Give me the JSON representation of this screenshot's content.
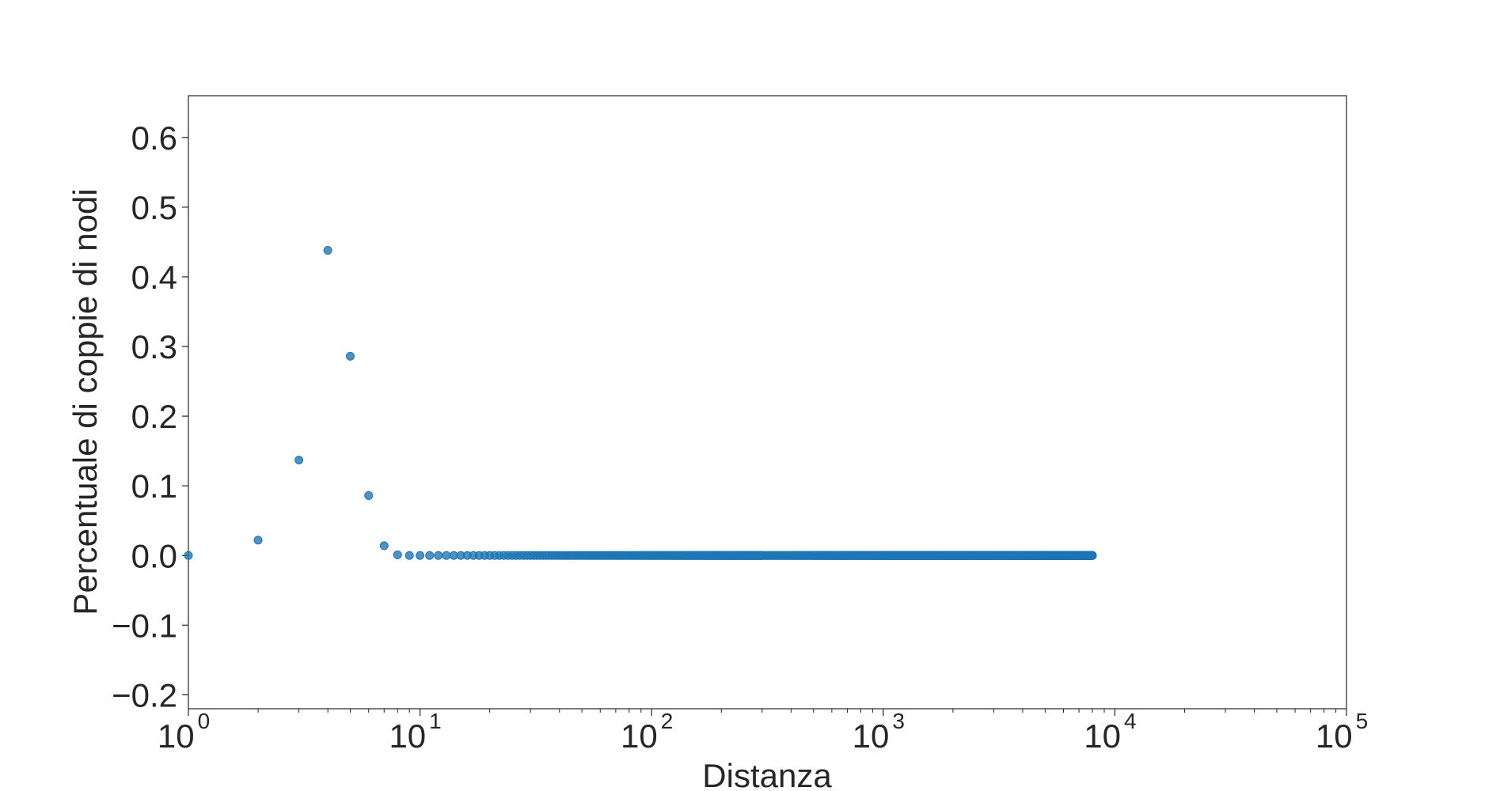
{
  "chart_data": {
    "type": "scatter",
    "title": "",
    "xlabel": "Distanza",
    "ylabel": "Percentuale di coppie di nodi",
    "x_scale": "log",
    "xlim": [
      1,
      100000
    ],
    "ylim": [
      -0.22,
      0.66
    ],
    "grid": false,
    "legend": "none",
    "x_ticks": [
      {
        "base": "10",
        "exp": "0",
        "value": 1
      },
      {
        "base": "10",
        "exp": "1",
        "value": 10
      },
      {
        "base": "10",
        "exp": "2",
        "value": 100
      },
      {
        "base": "10",
        "exp": "3",
        "value": 1000
      },
      {
        "base": "10",
        "exp": "4",
        "value": 10000
      },
      {
        "base": "10",
        "exp": "5",
        "value": 100000
      }
    ],
    "y_ticks": [
      {
        "label": "0.6",
        "value": 0.6
      },
      {
        "label": "0.5",
        "value": 0.5
      },
      {
        "label": "0.4",
        "value": 0.4
      },
      {
        "label": "0.3",
        "value": 0.3
      },
      {
        "label": "0.2",
        "value": 0.2
      },
      {
        "label": "0.1",
        "value": 0.1
      },
      {
        "label": "0.0",
        "value": 0.0
      },
      {
        "label": "−0.1",
        "value": -0.1
      },
      {
        "label": "−0.2",
        "value": -0.2
      }
    ],
    "marker_color": "#1f77b4",
    "points": [
      {
        "x": 1,
        "y": 0.0
      },
      {
        "x": 2,
        "y": 0.022
      },
      {
        "x": 3,
        "y": 0.137
      },
      {
        "x": 4,
        "y": 0.438
      },
      {
        "x": 5,
        "y": 0.286
      },
      {
        "x": 6,
        "y": 0.086
      },
      {
        "x": 7,
        "y": 0.014
      },
      {
        "x": 8,
        "y": 0.001
      }
    ],
    "zero_tail": {
      "x_start": 9,
      "x_end": 8000,
      "y": 0.0
    }
  }
}
